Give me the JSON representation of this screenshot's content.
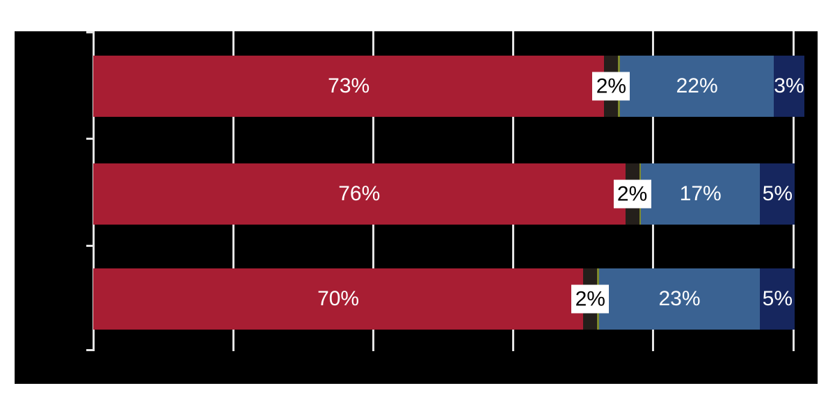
{
  "page_background": "#FFFFFF",
  "chart_background": "#000000",
  "chart_data": {
    "type": "bar",
    "variant": "horizontal_stacked_percent",
    "title": "",
    "categories": [
      "",
      "",
      ""
    ],
    "series": [
      {
        "name": "segment-red",
        "color": "#A81E33",
        "values": [
          73,
          76,
          70
        ],
        "labels": [
          "73%",
          "76%",
          "70%"
        ],
        "label_style": "inside"
      },
      {
        "name": "segment-dark",
        "color": "#241F1B",
        "values": [
          2,
          2,
          2
        ],
        "labels": [
          "2%",
          "2%",
          "2%"
        ],
        "label_style": "callout"
      },
      {
        "name": "segment-olive-sliver",
        "color": "#7E8A2D",
        "values": [
          0.25,
          0.25,
          0.25
        ],
        "labels": [
          "",
          "",
          ""
        ],
        "label_style": "none"
      },
      {
        "name": "segment-blue",
        "color": "#3A6292",
        "values": [
          22,
          17,
          23
        ],
        "labels": [
          "22%",
          "17%",
          "23%"
        ],
        "label_style": "inside"
      },
      {
        "name": "segment-navy",
        "color": "#16265E",
        "values": [
          3,
          5,
          5
        ],
        "labels": [
          "3%",
          "5%",
          "5%"
        ],
        "label_style": "inside"
      }
    ],
    "xlim": [
      0,
      100
    ],
    "x_tick_step": 20,
    "grid": true,
    "gridline_color": "#E4E4E4",
    "bar_label_color": "#FFFFFF",
    "callout_background": "#FFFFFF",
    "callout_text_color": "#000000",
    "legend": null
  }
}
